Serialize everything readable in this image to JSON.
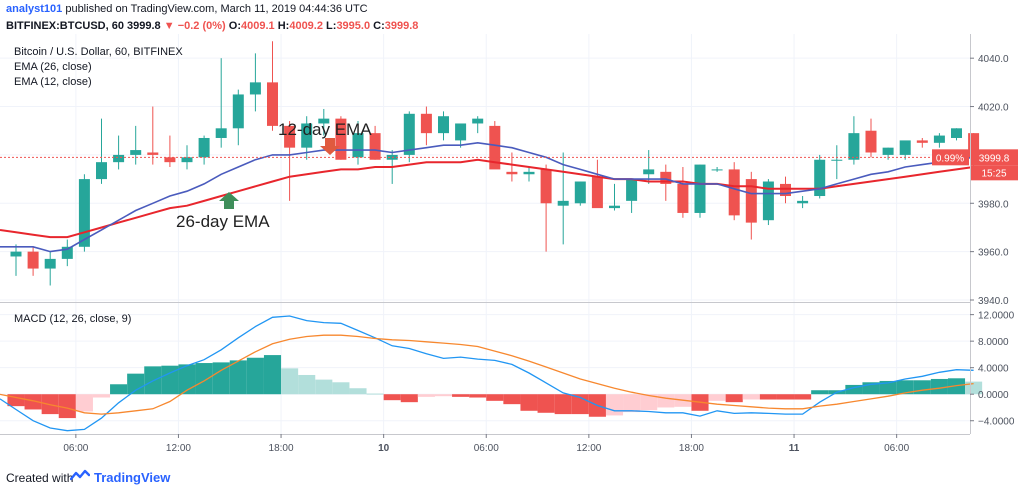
{
  "header": {
    "user": "analyst101",
    "published": "published on TradingView.com, March 11, 2019 04:44:36 UTC",
    "symbol": "BITFINEX:BTCUSD, 60",
    "last": "3999.8",
    "change": "▼ −0.2 (0%)",
    "o_label": "O:",
    "o_value": "4009.1",
    "h_label": "H:",
    "h_value": "4009.2",
    "l_label": "L:",
    "l_value": "3995.0",
    "c_label": "C:",
    "c_value": "3999.8"
  },
  "legend": {
    "title": "Bitcoin / U.S. Dollar, 60, BITFINEX",
    "ema26": "EMA (26, close)",
    "ema12": "EMA (12, close)"
  },
  "annotations": {
    "ema12_label": "12-day EMA",
    "ema26_label": "26-day EMA"
  },
  "price_badge": {
    "pct": "0.99%",
    "price": "3999.8",
    "countdown": "15:25"
  },
  "macd_legend": "MACD (12, 26, close, 9)",
  "footer": {
    "created": "Created with",
    "brand": "TradingView"
  },
  "colors": {
    "up": "#26a69a",
    "down": "#ef5350",
    "ema12": "#4a5bbd",
    "ema26": "#e8262d",
    "macd_line": "#2196f3",
    "signal_line": "#f7882f",
    "hist_up_strong": "#26a69a",
    "hist_up_weak": "#b2dfdb",
    "hist_down_strong": "#ef5350",
    "hist_down_weak": "#ffcdd2"
  },
  "chart_data": [
    {
      "type": "candlestick",
      "title": "Bitcoin / U.S. Dollar, 60, BITFINEX",
      "ylim": [
        3940,
        4050
      ],
      "yticks": [
        3940,
        3960,
        3980,
        4000,
        4020,
        4040
      ],
      "ytick_labels": [
        "3940.0",
        "3960.0",
        "3980.0",
        "4020.0",
        "4040.0"
      ],
      "xtick_labels": [
        {
          "i": 3.5,
          "label": "06:00"
        },
        {
          "i": 9.5,
          "label": "12:00"
        },
        {
          "i": 15.5,
          "label": "18:00"
        },
        {
          "i": 21.5,
          "label": "10"
        },
        {
          "i": 27.5,
          "label": "06:00"
        },
        {
          "i": 33.5,
          "label": "12:00"
        },
        {
          "i": 39.5,
          "label": "18:00"
        },
        {
          "i": 45.5,
          "label": "11"
        },
        {
          "i": 51.5,
          "label": "06:00"
        }
      ],
      "ohlc": [
        [
          3958,
          3963,
          3950,
          3960
        ],
        [
          3960,
          3962,
          3950,
          3953
        ],
        [
          3953,
          3960,
          3946,
          3957
        ],
        [
          3957,
          3965,
          3954,
          3962
        ],
        [
          3962,
          3992,
          3960,
          3990
        ],
        [
          3990,
          4015,
          3988,
          3997
        ],
        [
          3997,
          4008,
          3994,
          4000
        ],
        [
          4000,
          4012,
          3996,
          4002
        ],
        [
          4001,
          4020,
          3996,
          4000
        ],
        [
          3999,
          4008,
          3995,
          3997
        ],
        [
          3997,
          4004,
          3994,
          3999
        ],
        [
          3999,
          4008,
          3996,
          4007
        ],
        [
          4007,
          4040,
          4003,
          4011
        ],
        [
          4011,
          4027,
          4004,
          4025
        ],
        [
          4025,
          4042,
          4018,
          4030
        ],
        [
          4030,
          4047,
          4010,
          4012
        ],
        [
          4012,
          4014,
          3981,
          4003
        ],
        [
          4003,
          4016,
          3998,
          4013
        ],
        [
          4013,
          4019,
          4008,
          4015
        ],
        [
          4015,
          4016,
          3998,
          3998
        ],
        [
          3999,
          4014,
          3996,
          4009
        ],
        [
          4009,
          4012,
          3998,
          3998
        ],
        [
          3998,
          4002,
          3988,
          4000
        ],
        [
          4000,
          4018,
          3997,
          4017
        ],
        [
          4017,
          4020,
          4004,
          4009
        ],
        [
          4009,
          4018,
          4006,
          4016
        ],
        [
          4006,
          4012,
          4003,
          4013
        ],
        [
          4013,
          4016,
          4009,
          4015
        ],
        [
          4012,
          4014,
          3995,
          3994
        ],
        [
          3993,
          4001,
          3989,
          3992
        ],
        [
          3992,
          3995,
          3989,
          3993
        ],
        [
          3994,
          3996,
          3960,
          3980
        ],
        [
          3979,
          4001,
          3963,
          3981
        ],
        [
          3980,
          3989,
          3979,
          3989
        ],
        [
          3991,
          3998,
          3979,
          3978
        ],
        [
          3978,
          3988,
          3977,
          3979
        ],
        [
          3981,
          3990,
          3976,
          3990
        ],
        [
          3992,
          4002,
          3988,
          3994
        ],
        [
          3993,
          3996,
          3981,
          3988
        ],
        [
          3988,
          3995,
          3974,
          3976
        ],
        [
          3976,
          3996,
          3974,
          3996
        ],
        [
          3994,
          3995,
          3993,
          3994
        ],
        [
          3994,
          3997,
          3973,
          3975
        ],
        [
          3990,
          3993,
          3965,
          3972
        ],
        [
          3973,
          3990,
          3971,
          3989
        ],
        [
          3988,
          3991,
          3980,
          3983
        ],
        [
          3980,
          3983,
          3978,
          3981
        ],
        [
          3983,
          4000,
          3982,
          3998
        ],
        [
          3998,
          4004,
          3990,
          3998
        ],
        [
          3998,
          4016,
          3996,
          4009
        ],
        [
          4010,
          4015,
          3999,
          4001
        ],
        [
          4000,
          4003,
          3998,
          4003
        ],
        [
          4000,
          4005,
          3998,
          4006
        ],
        [
          4006,
          4007,
          4003,
          4005
        ],
        [
          4005,
          4009,
          4003,
          4008
        ],
        [
          4007,
          4011,
          4006,
          4011
        ],
        [
          4009,
          4009,
          3995,
          3999
        ]
      ],
      "ema12": [
        3962,
        3962,
        3960,
        3961,
        3965,
        3969,
        3973,
        3977,
        3980,
        3983,
        3985,
        3988,
        3992,
        3995,
        3998,
        4000,
        4000,
        4001,
        4002,
        4002,
        4002,
        4002,
        4001,
        4002,
        4003,
        4004,
        4004,
        4005,
        4004,
        4003,
        4001,
        3999,
        3996,
        3994,
        3992,
        3990,
        3990,
        3990,
        3990,
        3988,
        3988,
        3988,
        3986,
        3984,
        3984,
        3984,
        3985,
        3986,
        3988,
        3990,
        3992,
        3993,
        3995,
        3996,
        3997,
        3998,
        3999
      ],
      "ema26": [
        3968,
        3967,
        3966,
        3966,
        3968,
        3970,
        3972,
        3974,
        3976,
        3978,
        3979,
        3981,
        3983,
        3985,
        3987,
        3989,
        3991,
        3992,
        3993,
        3994,
        3994,
        3995,
        3995,
        3996,
        3997,
        3997,
        3997,
        3998,
        3997,
        3996,
        3995,
        3994,
        3993,
        3992,
        3991,
        3990,
        3990,
        3989,
        3989,
        3989,
        3988,
        3988,
        3987,
        3987,
        3986,
        3986,
        3986,
        3986,
        3987,
        3988,
        3989,
        3990,
        3991,
        3992,
        3993,
        3994,
        3995
      ]
    },
    {
      "type": "macd",
      "title": "MACD (12, 26, close, 9)",
      "ylim": [
        -6,
        13
      ],
      "yticks": [
        -4,
        0,
        4,
        8,
        12
      ],
      "ytick_labels": [
        "−4.0000",
        "0.0000",
        "4.0000",
        "8.0000",
        "12.0000"
      ],
      "macd": [
        -2.3,
        -4.0,
        -5.1,
        -5.5,
        -5.3,
        -3.6,
        -1.3,
        0.6,
        2.0,
        3.2,
        4.3,
        5.2,
        6.7,
        8.5,
        10.2,
        11.6,
        11.8,
        11.1,
        10.8,
        10.7,
        9.6,
        8.5,
        7.3,
        6.9,
        6.1,
        5.4,
        5.6,
        5.3,
        5.1,
        4.5,
        3.2,
        1.7,
        0.2,
        -0.5,
        -1.7,
        -2.5,
        -2.5,
        -2.6,
        -2.8,
        -2.8,
        -3.3,
        -2.5,
        -2.9,
        -2.8,
        -2.9,
        -3.0,
        -3.0,
        -1.2,
        0.3,
        1.0,
        1.5,
        1.7,
        2.3,
        2.7,
        3.3,
        3.7,
        3.6
      ],
      "signal": [
        -0.5,
        -1.0,
        -1.6,
        -2.1,
        -2.8,
        -3.0,
        -2.8,
        -2.5,
        -2.2,
        -1.1,
        0.6,
        2.0,
        3.6,
        5.0,
        6.4,
        7.6,
        8.3,
        8.7,
        8.9,
        8.9,
        8.7,
        8.4,
        8.2,
        8.1,
        7.9,
        7.7,
        7.5,
        7.2,
        6.5,
        5.8,
        5.0,
        4.1,
        3.2,
        2.3,
        1.6,
        0.9,
        0.3,
        -0.2,
        -0.6,
        -0.9,
        -1.2,
        -1.5,
        -1.7,
        -1.9,
        -2.1,
        -2.2,
        -2.2,
        -1.8,
        -1.5,
        -1.1,
        -0.7,
        -0.3,
        0.2,
        0.6,
        0.9,
        1.3,
        1.6
      ],
      "histogram": [
        -1.8,
        -2.3,
        -3.0,
        -3.6,
        -2.6,
        -0.5,
        1.5,
        3.1,
        4.2,
        4.3,
        4.5,
        4.7,
        4.8,
        5.1,
        5.5,
        5.9,
        3.9,
        2.9,
        2.2,
        1.8,
        0.9,
        0.1,
        -0.9,
        -1.2,
        -0.4,
        -0.3,
        -0.4,
        -0.5,
        -1.0,
        -1.5,
        -2.5,
        -2.8,
        -3.0,
        -3.0,
        -3.4,
        -3.2,
        -2.7,
        -2.4,
        -2.0,
        -1.9,
        -2.5,
        -1.0,
        -1.2,
        -0.8,
        -0.8,
        -0.8,
        -0.8,
        0.6,
        0.6,
        1.4,
        1.8,
        2.0,
        2.1,
        2.1,
        2.3,
        2.4,
        1.9
      ]
    }
  ]
}
